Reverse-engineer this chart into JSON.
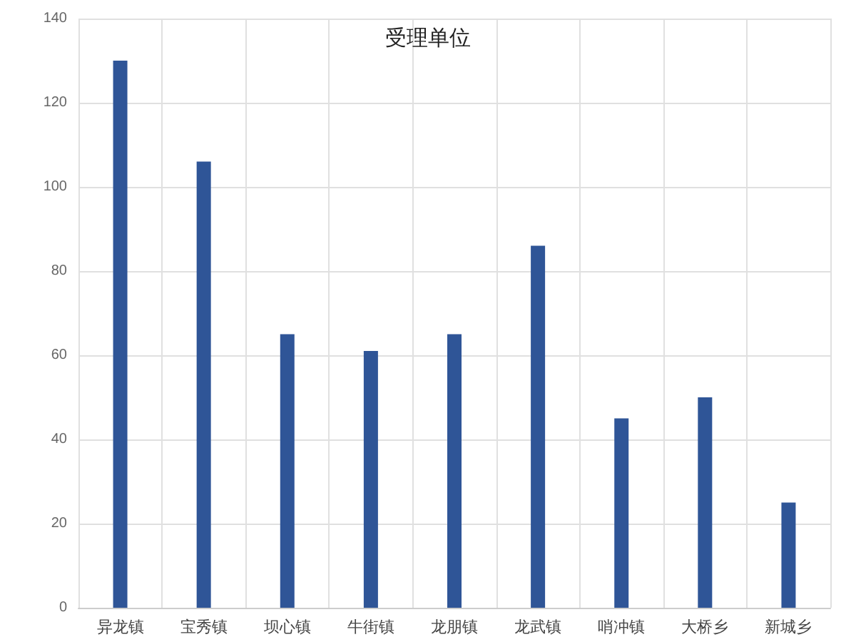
{
  "chart_data": {
    "type": "bar",
    "title": "受理单位",
    "categories": [
      "异龙镇",
      "宝秀镇",
      "坝心镇",
      "牛街镇",
      "龙朋镇",
      "龙武镇",
      "哨冲镇",
      "大桥乡",
      "新城乡"
    ],
    "values": [
      130,
      106,
      65,
      61,
      65,
      86,
      45,
      50,
      25
    ],
    "color": "#2f5597",
    "ylim": [
      0,
      140
    ],
    "yticks": [
      0,
      20,
      40,
      60,
      80,
      100,
      120,
      140
    ],
    "grid": true
  }
}
